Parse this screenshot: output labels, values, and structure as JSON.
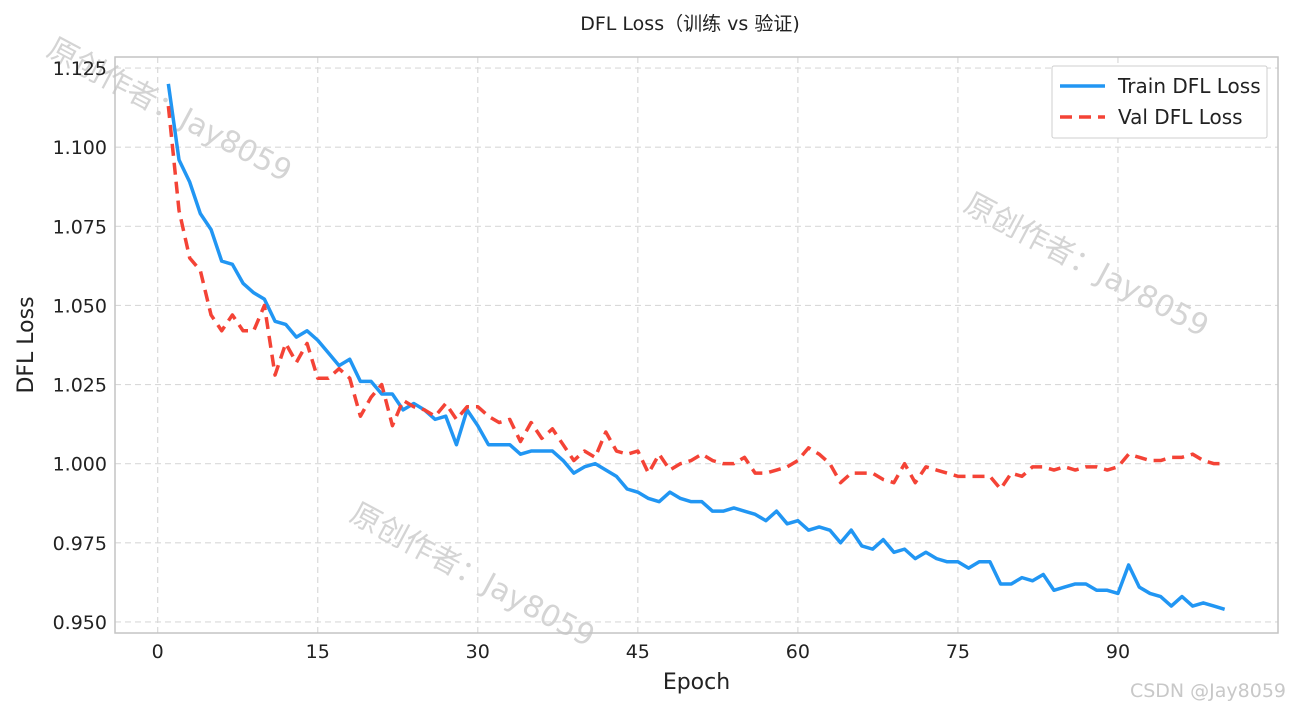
{
  "chart_data": {
    "type": "line",
    "title": "DFL Loss（训练 vs 验证)",
    "xlabel": "Epoch",
    "ylabel": "DFL Loss",
    "xlim": [
      -4,
      105
    ],
    "ylim": [
      0.9465,
      1.1285
    ],
    "xticks": [
      0,
      15,
      30,
      45,
      60,
      75,
      90
    ],
    "yticks": [
      0.95,
      0.975,
      1.0,
      1.025,
      1.05,
      1.075,
      1.1,
      1.125
    ],
    "ytick_labels": [
      "0.950",
      "0.975",
      "1.000",
      "1.025",
      "1.050",
      "1.075",
      "1.100",
      "1.125"
    ],
    "grid": true,
    "legend_position": "top-right",
    "x": [
      1,
      2,
      3,
      4,
      5,
      6,
      7,
      8,
      9,
      10,
      11,
      12,
      13,
      14,
      15,
      16,
      17,
      18,
      19,
      20,
      21,
      22,
      23,
      24,
      25,
      26,
      27,
      28,
      29,
      30,
      31,
      32,
      33,
      34,
      35,
      36,
      37,
      38,
      39,
      40,
      41,
      42,
      43,
      44,
      45,
      46,
      47,
      48,
      49,
      50,
      51,
      52,
      53,
      54,
      55,
      56,
      57,
      58,
      59,
      60,
      61,
      62,
      63,
      64,
      65,
      66,
      67,
      68,
      69,
      70,
      71,
      72,
      73,
      74,
      75,
      76,
      77,
      78,
      79,
      80,
      81,
      82,
      83,
      84,
      85,
      86,
      87,
      88,
      89,
      90,
      91,
      92,
      93,
      94,
      95,
      96,
      97,
      98,
      99,
      100
    ],
    "series": [
      {
        "name": "Train DFL Loss",
        "color": "#2196F3",
        "style": "solid",
        "values": [
          1.12,
          1.096,
          1.089,
          1.079,
          1.074,
          1.064,
          1.063,
          1.057,
          1.054,
          1.052,
          1.045,
          1.044,
          1.04,
          1.042,
          1.039,
          1.035,
          1.031,
          1.033,
          1.026,
          1.026,
          1.022,
          1.022,
          1.017,
          1.019,
          1.017,
          1.014,
          1.015,
          1.006,
          1.017,
          1.012,
          1.006,
          1.006,
          1.006,
          1.003,
          1.004,
          1.004,
          1.004,
          1.001,
          0.997,
          0.999,
          1.0,
          0.998,
          0.996,
          0.992,
          0.991,
          0.989,
          0.988,
          0.991,
          0.989,
          0.988,
          0.988,
          0.985,
          0.985,
          0.986,
          0.985,
          0.984,
          0.982,
          0.985,
          0.981,
          0.982,
          0.979,
          0.98,
          0.979,
          0.975,
          0.979,
          0.974,
          0.973,
          0.976,
          0.972,
          0.973,
          0.97,
          0.972,
          0.97,
          0.969,
          0.969,
          0.967,
          0.969,
          0.969,
          0.962,
          0.962,
          0.964,
          0.963,
          0.965,
          0.96,
          0.961,
          0.962,
          0.962,
          0.96,
          0.96,
          0.959,
          0.968,
          0.961,
          0.959,
          0.958,
          0.955,
          0.958,
          0.955,
          0.956,
          0.955,
          0.954
        ]
      },
      {
        "name": "Val DFL Loss",
        "color": "#F44336",
        "style": "dashed",
        "values": [
          1.113,
          1.08,
          1.065,
          1.061,
          1.047,
          1.042,
          1.047,
          1.042,
          1.042,
          1.05,
          1.028,
          1.038,
          1.032,
          1.038,
          1.027,
          1.027,
          1.03,
          1.027,
          1.015,
          1.021,
          1.025,
          1.012,
          1.02,
          1.018,
          1.017,
          1.015,
          1.019,
          1.014,
          1.018,
          1.018,
          1.015,
          1.013,
          1.014,
          1.007,
          1.013,
          1.008,
          1.011,
          1.006,
          1.001,
          1.004,
          1.002,
          1.01,
          1.004,
          1.003,
          1.004,
          0.997,
          1.003,
          0.998,
          1.0,
          1.001,
          1.003,
          1.001,
          1.0,
          1.0,
          1.002,
          0.997,
          0.997,
          0.998,
          0.999,
          1.001,
          1.005,
          1.003,
          1.0,
          0.994,
          0.997,
          0.997,
          0.997,
          0.995,
          0.994,
          1.0,
          0.994,
          0.999,
          0.998,
          0.997,
          0.996,
          0.996,
          0.996,
          0.996,
          0.992,
          0.997,
          0.996,
          0.999,
          0.999,
          0.998,
          0.999,
          0.998,
          0.999,
          0.999,
          0.998,
          0.999,
          1.003,
          1.002,
          1.001,
          1.001,
          1.002,
          1.002,
          1.003,
          1.001,
          1.0,
          1.0
        ]
      }
    ],
    "watermarks": [
      "原创作者：Jay8059",
      "原创作者：Jay8059",
      "原创作者：Jay8059"
    ],
    "credit": "CSDN @Jay8059"
  }
}
